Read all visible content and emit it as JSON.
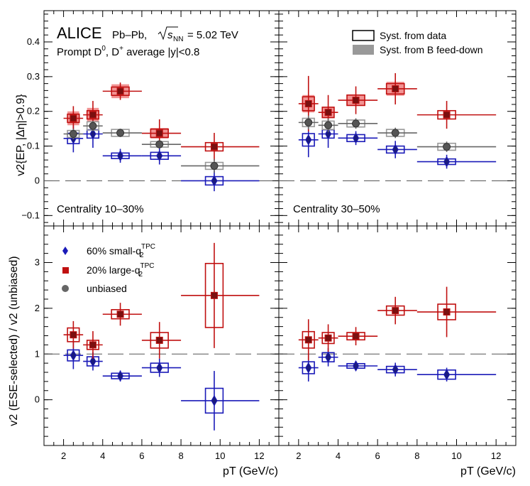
{
  "colors": {
    "small": "#1a1ab8",
    "large": "#c01010",
    "unbiased": "#666666",
    "feeddown": "#f08080",
    "syst_gray": "#999999"
  },
  "header": {
    "experiment": "ALICE",
    "system": "Pb–Pb,",
    "energy_sym": "s",
    "energy_sub": "NN",
    "energy_val": "= 5.02 TeV",
    "line2_a": "Prompt D",
    "line2_sup": "0",
    "line2_b": ", D",
    "line2_sup2": "+",
    "line2_c": " average |y|<0.8"
  },
  "legend_top": {
    "syst_data": "Syst. from data",
    "syst_feeddown": "Syst. from B feed-down"
  },
  "legend_bottom": {
    "small_pre": "60% small-q",
    "small_sub": "2",
    "small_sup": "TPC",
    "large_pre": "20% large-q",
    "large_sub": "2",
    "large_sup": "TPC",
    "unbiased": "unbiased"
  },
  "labels": {
    "cent_left": "Centrality 10–30%",
    "cent_right": "Centrality 30–50%"
  },
  "axes": {
    "ylabel_top": "v2{EP, |Δη|>0.9}",
    "ylabel_bottom": "v2 (ESE-selected) / v2 (unbiased)",
    "xlabel": "pT (GeV/c)",
    "x_ticks": [
      "2",
      "4",
      "6",
      "8",
      "10",
      "12"
    ],
    "top_y_ticks": [
      "−0.1",
      "0",
      "0.1",
      "0.2",
      "0.3",
      "0.4"
    ],
    "bottom_y_ticks": [
      "0",
      "1",
      "2",
      "3"
    ]
  },
  "chart_data": [
    {
      "type": "scatter",
      "panel": "top-left",
      "centrality": "10–30%",
      "xlim": [
        1,
        13
      ],
      "ylim": [
        -0.13,
        0.49
      ],
      "reference_line": 0,
      "series": [
        {
          "name": "60% small-q2TPC",
          "points": [
            {
              "x": 2.5,
              "xl": 2,
              "xh": 3,
              "y": 0.122,
              "stat": 0.04,
              "syst": 0.015
            },
            {
              "x": 3.5,
              "xl": 3,
              "xh": 4,
              "y": 0.135,
              "stat": 0.04,
              "syst": 0.012
            },
            {
              "x": 4.9,
              "xl": 4,
              "xh": 6,
              "y": 0.072,
              "stat": 0.02,
              "syst": 0.008
            },
            {
              "x": 6.9,
              "xl": 6,
              "xh": 8,
              "y": 0.072,
              "stat": 0.025,
              "syst": 0.01
            },
            {
              "x": 9.7,
              "xl": 8,
              "xh": 12,
              "y": 0.0,
              "stat": 0.03,
              "syst": 0.012
            }
          ]
        },
        {
          "name": "20% large-q2TPC",
          "points": [
            {
              "x": 2.5,
              "xl": 2,
              "xh": 3,
              "y": 0.18,
              "stat": 0.035,
              "syst": 0.012,
              "fd": 0.02
            },
            {
              "x": 3.5,
              "xl": 3,
              "xh": 4,
              "y": 0.19,
              "stat": 0.04,
              "syst": 0.012,
              "fd": 0.02
            },
            {
              "x": 4.9,
              "xl": 4,
              "xh": 6,
              "y": 0.258,
              "stat": 0.025,
              "syst": 0.012,
              "fd": 0.02
            },
            {
              "x": 6.9,
              "xl": 6,
              "xh": 8,
              "y": 0.137,
              "stat": 0.04,
              "syst": 0.012,
              "fd": 0.015
            },
            {
              "x": 9.7,
              "xl": 8,
              "xh": 12,
              "y": 0.098,
              "stat": 0.04,
              "syst": 0.012
            }
          ]
        },
        {
          "name": "unbiased",
          "points": [
            {
              "x": 2.5,
              "xl": 2,
              "xh": 3,
              "y": 0.135,
              "stat": 0.015,
              "syst": 0.01
            },
            {
              "x": 3.5,
              "xl": 3,
              "xh": 4,
              "y": 0.158,
              "stat": 0.015,
              "syst": 0.012
            },
            {
              "x": 4.9,
              "xl": 4,
              "xh": 6,
              "y": 0.138,
              "stat": 0.012,
              "syst": 0.01
            },
            {
              "x": 6.9,
              "xl": 6,
              "xh": 8,
              "y": 0.105,
              "stat": 0.012,
              "syst": 0.008
            },
            {
              "x": 9.7,
              "xl": 8,
              "xh": 12,
              "y": 0.043,
              "stat": 0.02,
              "syst": 0.01
            }
          ]
        }
      ]
    },
    {
      "type": "scatter",
      "panel": "top-right",
      "centrality": "30–50%",
      "xlim": [
        1,
        13
      ],
      "ylim": [
        -0.13,
        0.49
      ],
      "reference_line": 0,
      "series": [
        {
          "name": "60% small-q2TPC",
          "points": [
            {
              "x": 2.5,
              "xl": 2,
              "xh": 3,
              "y": 0.118,
              "stat": 0.05,
              "syst": 0.018
            },
            {
              "x": 3.5,
              "xl": 3,
              "xh": 4,
              "y": 0.135,
              "stat": 0.04,
              "syst": 0.012
            },
            {
              "x": 4.9,
              "xl": 4,
              "xh": 6,
              "y": 0.123,
              "stat": 0.02,
              "syst": 0.01
            },
            {
              "x": 6.9,
              "xl": 6,
              "xh": 8,
              "y": 0.09,
              "stat": 0.025,
              "syst": 0.01
            },
            {
              "x": 9.5,
              "xl": 8,
              "xh": 12,
              "y": 0.055,
              "stat": 0.02,
              "syst": 0.008
            }
          ]
        },
        {
          "name": "20% large-q2TPC",
          "points": [
            {
              "x": 2.5,
              "xl": 2,
              "xh": 3,
              "y": 0.222,
              "stat": 0.08,
              "syst": 0.02,
              "fd": 0.025
            },
            {
              "x": 3.5,
              "xl": 3,
              "xh": 4,
              "y": 0.197,
              "stat": 0.05,
              "syst": 0.015,
              "fd": 0.015
            },
            {
              "x": 4.9,
              "xl": 4,
              "xh": 6,
              "y": 0.232,
              "stat": 0.04,
              "syst": 0.015,
              "fd": 0.015
            },
            {
              "x": 6.9,
              "xl": 6,
              "xh": 8,
              "y": 0.265,
              "stat": 0.045,
              "syst": 0.015,
              "fd": 0.02
            },
            {
              "x": 9.5,
              "xl": 8,
              "xh": 12,
              "y": 0.19,
              "stat": 0.04,
              "syst": 0.012
            }
          ]
        },
        {
          "name": "unbiased",
          "points": [
            {
              "x": 2.5,
              "xl": 2,
              "xh": 3,
              "y": 0.168,
              "stat": 0.02,
              "syst": 0.012
            },
            {
              "x": 3.5,
              "xl": 3,
              "xh": 4,
              "y": 0.16,
              "stat": 0.02,
              "syst": 0.012
            },
            {
              "x": 4.9,
              "xl": 4,
              "xh": 6,
              "y": 0.165,
              "stat": 0.015,
              "syst": 0.01
            },
            {
              "x": 6.9,
              "xl": 6,
              "xh": 8,
              "y": 0.138,
              "stat": 0.015,
              "syst": 0.01
            },
            {
              "x": 9.5,
              "xl": 8,
              "xh": 12,
              "y": 0.098,
              "stat": 0.015,
              "syst": 0.01
            }
          ]
        }
      ]
    },
    {
      "type": "scatter",
      "panel": "bottom-left",
      "xlim": [
        1,
        13
      ],
      "ylim": [
        -1.0,
        3.8
      ],
      "reference_line": 1,
      "series": [
        {
          "name": "60% small-q2TPC",
          "points": [
            {
              "x": 2.5,
              "xl": 2,
              "xh": 3,
              "y": 0.97,
              "stat": 0.3,
              "syst": 0.12
            },
            {
              "x": 3.5,
              "xl": 3,
              "xh": 4,
              "y": 0.84,
              "stat": 0.2,
              "syst": 0.1
            },
            {
              "x": 4.9,
              "xl": 4,
              "xh": 6,
              "y": 0.52,
              "stat": 0.12,
              "syst": 0.06
            },
            {
              "x": 6.9,
              "xl": 6,
              "xh": 8,
              "y": 0.7,
              "stat": 0.2,
              "syst": 0.1
            },
            {
              "x": 9.7,
              "xl": 8,
              "xh": 12,
              "y": -0.02,
              "stat": 0.65,
              "syst": 0.27
            }
          ]
        },
        {
          "name": "20% large-q2TPC",
          "points": [
            {
              "x": 2.5,
              "xl": 2,
              "xh": 3,
              "y": 1.42,
              "stat": 0.3,
              "syst": 0.15
            },
            {
              "x": 3.5,
              "xl": 3,
              "xh": 4,
              "y": 1.2,
              "stat": 0.3,
              "syst": 0.1
            },
            {
              "x": 4.9,
              "xl": 4,
              "xh": 6,
              "y": 1.87,
              "stat": 0.25,
              "syst": 0.1
            },
            {
              "x": 6.9,
              "xl": 6,
              "xh": 8,
              "y": 1.3,
              "stat": 0.4,
              "syst": 0.17
            },
            {
              "x": 9.7,
              "xl": 8,
              "xh": 12,
              "y": 2.28,
              "stat": 1.15,
              "syst": 0.7
            }
          ]
        }
      ]
    },
    {
      "type": "scatter",
      "panel": "bottom-right",
      "xlim": [
        1,
        13
      ],
      "ylim": [
        -1.0,
        3.8
      ],
      "reference_line": 1,
      "series": [
        {
          "name": "60% small-q2TPC",
          "points": [
            {
              "x": 2.5,
              "xl": 2,
              "xh": 3,
              "y": 0.7,
              "stat": 0.3,
              "syst": 0.13
            },
            {
              "x": 3.5,
              "xl": 3,
              "xh": 4,
              "y": 0.93,
              "stat": 0.2,
              "syst": 0.1
            },
            {
              "x": 4.9,
              "xl": 4,
              "xh": 6,
              "y": 0.74,
              "stat": 0.1,
              "syst": 0.05
            },
            {
              "x": 6.9,
              "xl": 6,
              "xh": 8,
              "y": 0.66,
              "stat": 0.15,
              "syst": 0.07
            },
            {
              "x": 9.5,
              "xl": 8,
              "xh": 12,
              "y": 0.55,
              "stat": 0.15,
              "syst": 0.1
            }
          ]
        },
        {
          "name": "20% large-q2TPC",
          "points": [
            {
              "x": 2.5,
              "xl": 2,
              "xh": 3,
              "y": 1.31,
              "stat": 0.45,
              "syst": 0.18
            },
            {
              "x": 3.5,
              "xl": 3,
              "xh": 4,
              "y": 1.35,
              "stat": 0.3,
              "syst": 0.12
            },
            {
              "x": 4.9,
              "xl": 4,
              "xh": 6,
              "y": 1.39,
              "stat": 0.2,
              "syst": 0.08
            },
            {
              "x": 6.9,
              "xl": 6,
              "xh": 8,
              "y": 1.95,
              "stat": 0.3,
              "syst": 0.1
            },
            {
              "x": 9.5,
              "xl": 8,
              "xh": 12,
              "y": 1.92,
              "stat": 0.55,
              "syst": 0.17
            }
          ]
        }
      ]
    }
  ]
}
